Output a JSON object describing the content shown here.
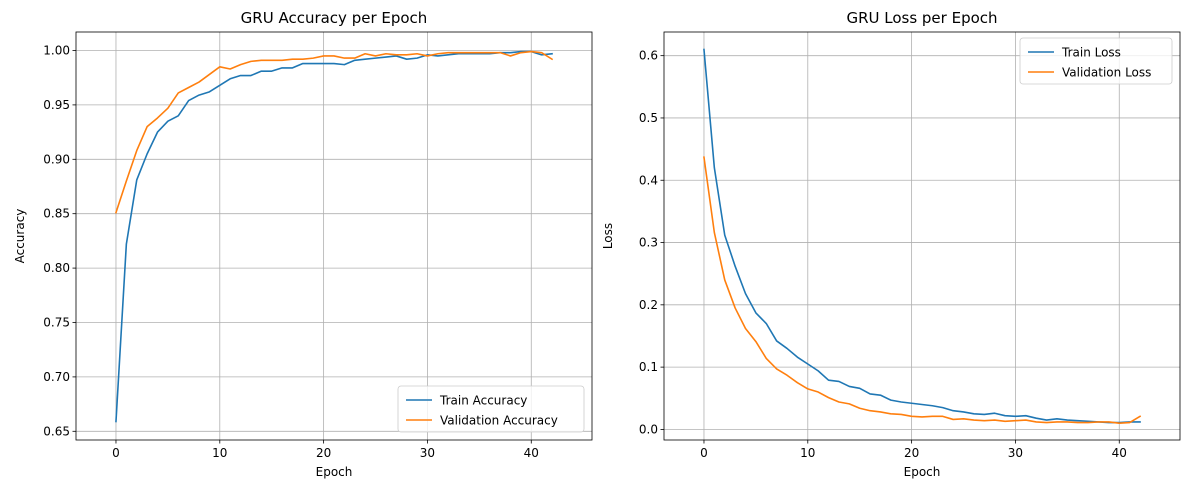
{
  "chart_data": [
    {
      "type": "line",
      "title": "GRU Accuracy per Epoch",
      "xlabel": "Epoch",
      "ylabel": "Accuracy",
      "xlim": [
        -3.85,
        45.85
      ],
      "ylim": [
        0.642,
        1.017
      ],
      "xticks": [
        0,
        10,
        20,
        30,
        40
      ],
      "yticks": [
        0.65,
        0.7,
        0.75,
        0.8,
        0.85,
        0.9,
        0.95,
        1.0
      ],
      "ytick_labels": [
        "0.65",
        "0.70",
        "0.75",
        "0.80",
        "0.85",
        "0.90",
        "0.95",
        "1.00"
      ],
      "grid": true,
      "legend_position": "lower-right",
      "series": [
        {
          "name": "Train Accuracy",
          "color": "#1f77b4",
          "values": [
            0.659,
            0.822,
            0.881,
            0.905,
            0.925,
            0.935,
            0.94,
            0.954,
            0.959,
            0.962,
            0.968,
            0.974,
            0.977,
            0.977,
            0.981,
            0.981,
            0.984,
            0.984,
            0.988,
            0.988,
            0.988,
            0.988,
            0.987,
            0.991,
            0.992,
            0.993,
            0.994,
            0.995,
            0.992,
            0.993,
            0.996,
            0.995,
            0.996,
            0.997,
            0.997,
            0.997,
            0.997,
            0.998,
            0.998,
            0.999,
            0.999,
            0.996,
            0.997
          ]
        },
        {
          "name": "Validation Accuracy",
          "color": "#ff7f0e",
          "values": [
            0.851,
            0.88,
            0.908,
            0.93,
            0.938,
            0.947,
            0.961,
            0.966,
            0.971,
            0.978,
            0.985,
            0.983,
            0.987,
            0.99,
            0.991,
            0.991,
            0.991,
            0.992,
            0.992,
            0.993,
            0.995,
            0.995,
            0.993,
            0.993,
            0.997,
            0.995,
            0.997,
            0.996,
            0.996,
            0.997,
            0.995,
            0.997,
            0.998,
            0.998,
            0.998,
            0.998,
            0.998,
            0.998,
            0.995,
            0.998,
            0.999,
            0.998,
            0.992
          ]
        }
      ]
    },
    {
      "type": "line",
      "title": "GRU Loss per Epoch",
      "xlabel": "Epoch",
      "ylabel": "Loss",
      "xlim": [
        -3.85,
        45.85
      ],
      "ylim": [
        -0.017,
        0.638
      ],
      "xticks": [
        0,
        10,
        20,
        30,
        40
      ],
      "yticks": [
        0.0,
        0.1,
        0.2,
        0.3,
        0.4,
        0.5,
        0.6
      ],
      "ytick_labels": [
        "0.0",
        "0.1",
        "0.2",
        "0.3",
        "0.4",
        "0.5",
        "0.6"
      ],
      "grid": true,
      "legend_position": "upper-right",
      "series": [
        {
          "name": "Train Loss",
          "color": "#1f77b4",
          "values": [
            0.61,
            0.42,
            0.312,
            0.262,
            0.218,
            0.187,
            0.17,
            0.142,
            0.13,
            0.116,
            0.105,
            0.094,
            0.079,
            0.077,
            0.069,
            0.066,
            0.057,
            0.055,
            0.047,
            0.044,
            0.042,
            0.04,
            0.038,
            0.035,
            0.03,
            0.028,
            0.025,
            0.024,
            0.026,
            0.022,
            0.021,
            0.022,
            0.018,
            0.015,
            0.017,
            0.015,
            0.014,
            0.013,
            0.012,
            0.011,
            0.011,
            0.012,
            0.012
          ]
        },
        {
          "name": "Validation Loss",
          "color": "#ff7f0e",
          "values": [
            0.437,
            0.316,
            0.24,
            0.195,
            0.162,
            0.141,
            0.114,
            0.097,
            0.087,
            0.075,
            0.065,
            0.06,
            0.051,
            0.044,
            0.041,
            0.034,
            0.03,
            0.028,
            0.025,
            0.024,
            0.021,
            0.02,
            0.021,
            0.021,
            0.016,
            0.017,
            0.015,
            0.014,
            0.015,
            0.013,
            0.014,
            0.015,
            0.012,
            0.011,
            0.012,
            0.012,
            0.011,
            0.011,
            0.012,
            0.012,
            0.01,
            0.011,
            0.021
          ]
        }
      ]
    }
  ]
}
